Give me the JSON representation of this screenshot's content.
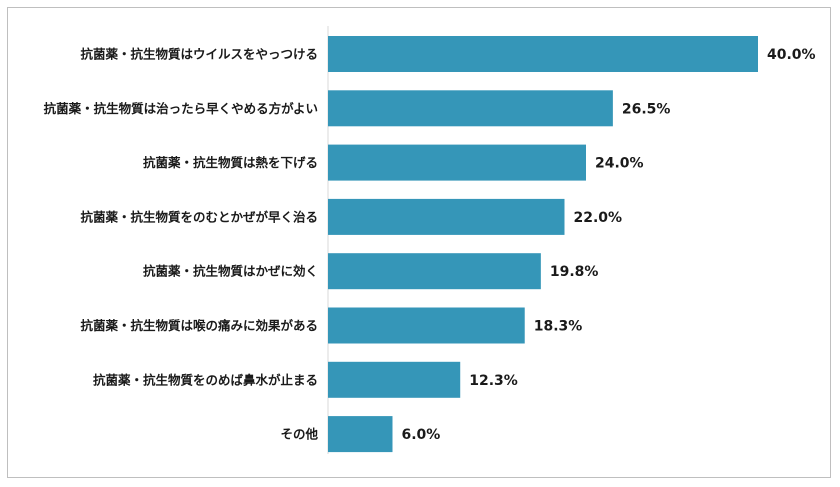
{
  "chart_data": {
    "type": "bar",
    "orientation": "horizontal",
    "categories": [
      "抗菌薬・抗生物質はウイルスをやっつける",
      "抗菌薬・抗生物質は治ったら早くやめる方がよい",
      "抗菌薬・抗生物質は熱を下げる",
      "抗菌薬・抗生物質をのむとかぜが早く治る",
      "抗菌薬・抗生物質はかぜに効く",
      "抗菌薬・抗生物質は喉の痛みに効果がある",
      "抗菌薬・抗生物質をのめば鼻水が止まる",
      "その他"
    ],
    "values": [
      40.0,
      26.5,
      24.0,
      22.0,
      19.8,
      18.3,
      12.3,
      6.0
    ],
    "value_labels": [
      "40.0%",
      "26.5%",
      "24.0%",
      "22.0%",
      "19.8%",
      "18.3%",
      "12.3%",
      "6.0%"
    ],
    "unit": "%",
    "xlim": [
      0,
      40.0
    ],
    "grid": false,
    "bar_color": "#3596b8",
    "title": "",
    "xlabel": "",
    "ylabel": ""
  }
}
